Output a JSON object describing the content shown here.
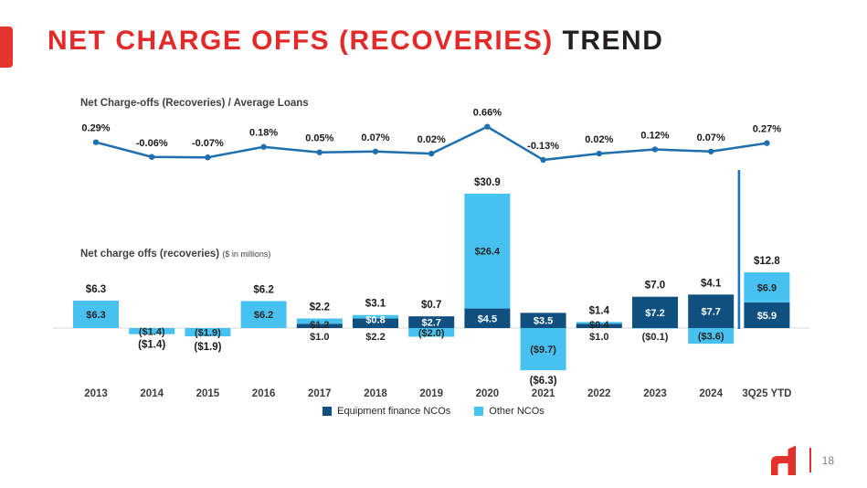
{
  "slide": {
    "title_red": "NET CHARGE OFFS (RECOVERIES) ",
    "title_dark": "TREND",
    "page_number": "18"
  },
  "sections": {
    "line_label": "Net Charge-offs (Recoveries) / Average Loans",
    "bar_label": "Net charge offs (recoveries) ",
    "bar_label_units": "($ in millions)"
  },
  "legend": {
    "items": [
      {
        "label": "Equipment finance NCOs",
        "color": "#0f5080"
      },
      {
        "label": "Other NCOs",
        "color": "#47c1f0"
      }
    ]
  },
  "colors": {
    "accent_red": "#e3342e",
    "title_red": "#e32a2a",
    "title_dark": "#231f20",
    "equipment_blue": "#0f5080",
    "other_blue": "#47c1f0",
    "line_blue": "#1e6fae",
    "separator_blue": "#1b75bc",
    "axis_gray": "#d9d9d9",
    "label_dark": "#262626",
    "year_gray": "#3d3d3d"
  },
  "chart_data": [
    {
      "type": "line",
      "title": "Net Charge-offs (Recoveries) / Average Loans",
      "categories": [
        "2013",
        "2014",
        "2015",
        "2016",
        "2017",
        "2018",
        "2019",
        "2020",
        "2021",
        "2022",
        "2023",
        "2024",
        "3Q25 YTD"
      ],
      "values": [
        0.29,
        -0.06,
        -0.07,
        0.18,
        0.05,
        0.07,
        0.02,
        0.66,
        -0.13,
        0.02,
        0.12,
        0.07,
        0.27
      ],
      "point_labels": [
        "0.29%",
        "-0.06%",
        "-0.07%",
        "0.18%",
        "0.05%",
        "0.07%",
        "0.02%",
        "0.66%",
        "-0.13%",
        "0.02%",
        "0.12%",
        "0.07%",
        "0.27%"
      ],
      "unit": "%",
      "grid": false,
      "markers": true,
      "ylim": [
        -0.2,
        0.75
      ]
    },
    {
      "type": "bar",
      "stacked": true,
      "title": "Net charge offs (recoveries) ($ in millions)",
      "unit": "$ millions",
      "categories": [
        "2013",
        "2014",
        "2015",
        "2016",
        "2017",
        "2018",
        "2019",
        "2020",
        "2021",
        "2022",
        "2023",
        "2024",
        "3Q25 YTD"
      ],
      "series": [
        {
          "name": "Equipment finance NCOs",
          "color": "#0f5080",
          "values": [
            0,
            0,
            0,
            0,
            1.0,
            2.2,
            2.7,
            4.5,
            3.5,
            1.0,
            7.2,
            7.7,
            5.9
          ]
        },
        {
          "name": "Other NCOs",
          "color": "#47c1f0",
          "values": [
            6.3,
            -1.4,
            -1.9,
            6.2,
            1.2,
            0.8,
            -2.0,
            26.4,
            -9.7,
            0.4,
            -0.1,
            -3.6,
            6.9
          ]
        }
      ],
      "totals": [
        6.3,
        -1.4,
        -1.9,
        6.2,
        2.2,
        3.1,
        0.7,
        30.9,
        -6.3,
        1.4,
        7.0,
        4.1,
        12.8
      ],
      "total_labels": [
        {
          "text": "$6.3",
          "pos": "above"
        },
        {
          "text": "($1.4)",
          "pos": "below"
        },
        {
          "text": "($1.9)",
          "pos": "below"
        },
        {
          "text": "$6.2",
          "pos": "above"
        },
        {
          "text": "$2.2",
          "pos": "above"
        },
        {
          "text": "$3.1",
          "pos": "above"
        },
        {
          "text": "$0.7",
          "pos": "above"
        },
        {
          "text": "$30.9",
          "pos": "above"
        },
        {
          "text": "($6.3)",
          "pos": "below"
        },
        {
          "text": "$1.4",
          "pos": "above"
        },
        {
          "text": "$7.0",
          "pos": "above"
        },
        {
          "text": "$4.1",
          "pos": "above"
        },
        {
          "text": "$12.8",
          "pos": "above"
        }
      ],
      "segment_labels": [
        [
          {
            "text": "$6.3",
            "pos": "in-other",
            "color": "black"
          }
        ],
        [
          {
            "text": "($1.4)",
            "pos": "in-other",
            "color": "black"
          }
        ],
        [
          {
            "text": "($1.9)",
            "pos": "in-other",
            "color": "black"
          }
        ],
        [
          {
            "text": "$6.2",
            "pos": "in-other",
            "color": "black"
          }
        ],
        [
          {
            "text": "$1.2",
            "pos": "boundary",
            "color": "black"
          },
          {
            "text": "$1.0",
            "pos": "below-axis",
            "color": "black"
          }
        ],
        [
          {
            "text": "$0.8",
            "pos": "boundary",
            "color": "white"
          },
          {
            "text": "$2.2",
            "pos": "below-axis",
            "color": "black"
          }
        ],
        [
          {
            "text": "$2.7",
            "pos": "in-equip",
            "color": "white"
          },
          {
            "text": "($2.0)",
            "pos": "in-other",
            "color": "black"
          }
        ],
        [
          {
            "text": "$4.5",
            "pos": "in-equip",
            "color": "white"
          },
          {
            "text": "$26.4",
            "pos": "in-other",
            "color": "black"
          }
        ],
        [
          {
            "text": "$3.5",
            "pos": "in-equip",
            "color": "white"
          },
          {
            "text": "($9.7)",
            "pos": "in-other",
            "color": "black"
          }
        ],
        [
          {
            "text": "$0.4",
            "pos": "boundary",
            "color": "black"
          },
          {
            "text": "$1.0",
            "pos": "below-axis",
            "color": "black"
          }
        ],
        [
          {
            "text": "$7.2",
            "pos": "in-equip",
            "color": "white"
          },
          {
            "text": "($0.1)",
            "pos": "below-axis",
            "color": "black"
          }
        ],
        [
          {
            "text": "$7.7",
            "pos": "in-equip",
            "color": "white"
          },
          {
            "text": "($3.6)",
            "pos": "in-other",
            "color": "black"
          }
        ],
        [
          {
            "text": "$5.9",
            "pos": "in-equip",
            "color": "white"
          },
          {
            "text": "$6.9",
            "pos": "in-other",
            "color": "black"
          }
        ]
      ],
      "separator_before_category": "3Q25 YTD",
      "legend_position": "bottom"
    }
  ]
}
